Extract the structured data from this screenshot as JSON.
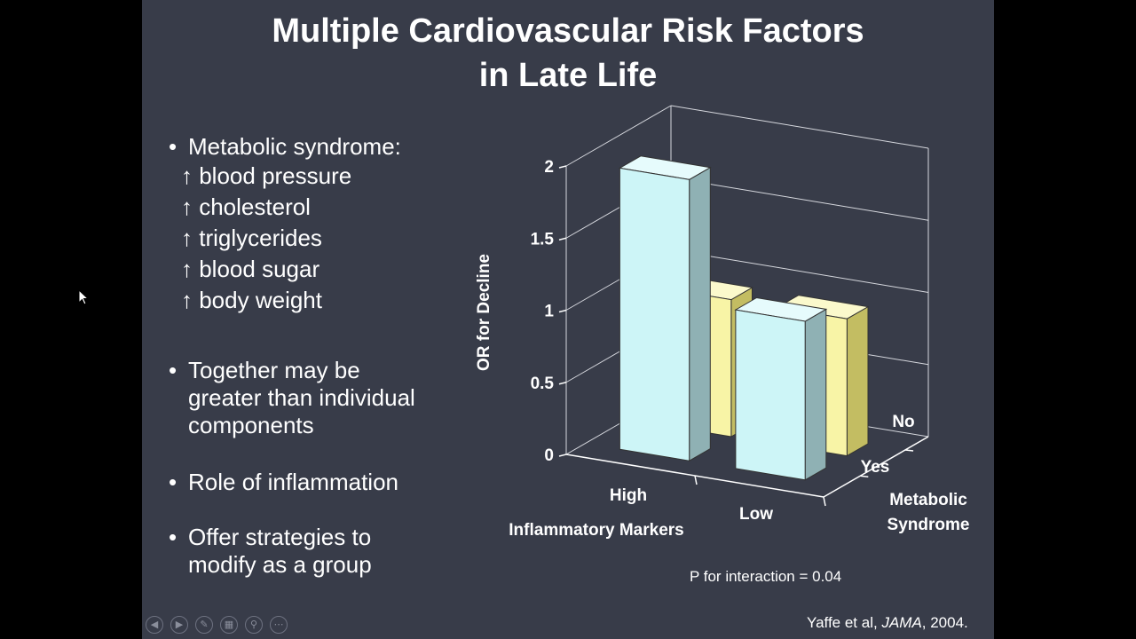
{
  "title": {
    "line1": "Multiple Cardiovascular Risk Factors",
    "line2": "in Late Life"
  },
  "bullets": {
    "b1": {
      "text": "Metabolic syndrome:",
      "sub": [
        "↑ blood pressure",
        "↑ cholesterol",
        "↑ triglycerides",
        "↑ blood sugar",
        "↑ body weight"
      ]
    },
    "b2": {
      "line1": "Together may be",
      "line2": "greater than  individual",
      "line3": "components"
    },
    "b3": {
      "text": "Role of inflammation"
    },
    "b4": {
      "line1": "Offer strategies to",
      "line2": "modify as a group"
    },
    "marker": "•"
  },
  "chart_data": {
    "type": "bar",
    "subtype": "3d-grouped",
    "ylabel": "OR for Decline",
    "xlabel": "Inflammatory Markers",
    "zlabel": [
      "Metabolic",
      "Syndrome"
    ],
    "categories": [
      "High",
      "Low"
    ],
    "yticks": [
      "0",
      "0.5",
      "1",
      "1.5",
      "2"
    ],
    "ylim": [
      0,
      2
    ],
    "series": [
      {
        "name": "Yes",
        "values": [
          1.95,
          1.1
        ],
        "color": "#cdf5f7"
      },
      {
        "name": "No",
        "values": [
          0.95,
          0.95
        ],
        "color": "#f8f4a6"
      }
    ]
  },
  "footnote": {
    "p": "P for interaction = 0.04"
  },
  "citation": {
    "author": "Yaffe et al, ",
    "journal": "JAMA",
    "year": ", 2004."
  },
  "controls": [
    {
      "name": "previous-slide-icon",
      "glyph": "◀"
    },
    {
      "name": "next-slide-icon",
      "glyph": "▶"
    },
    {
      "name": "pen-icon",
      "glyph": "✎"
    },
    {
      "name": "slides-grid-icon",
      "glyph": "▦"
    },
    {
      "name": "zoom-icon",
      "glyph": "⚲"
    },
    {
      "name": "more-options-icon",
      "glyph": "⋯"
    }
  ]
}
